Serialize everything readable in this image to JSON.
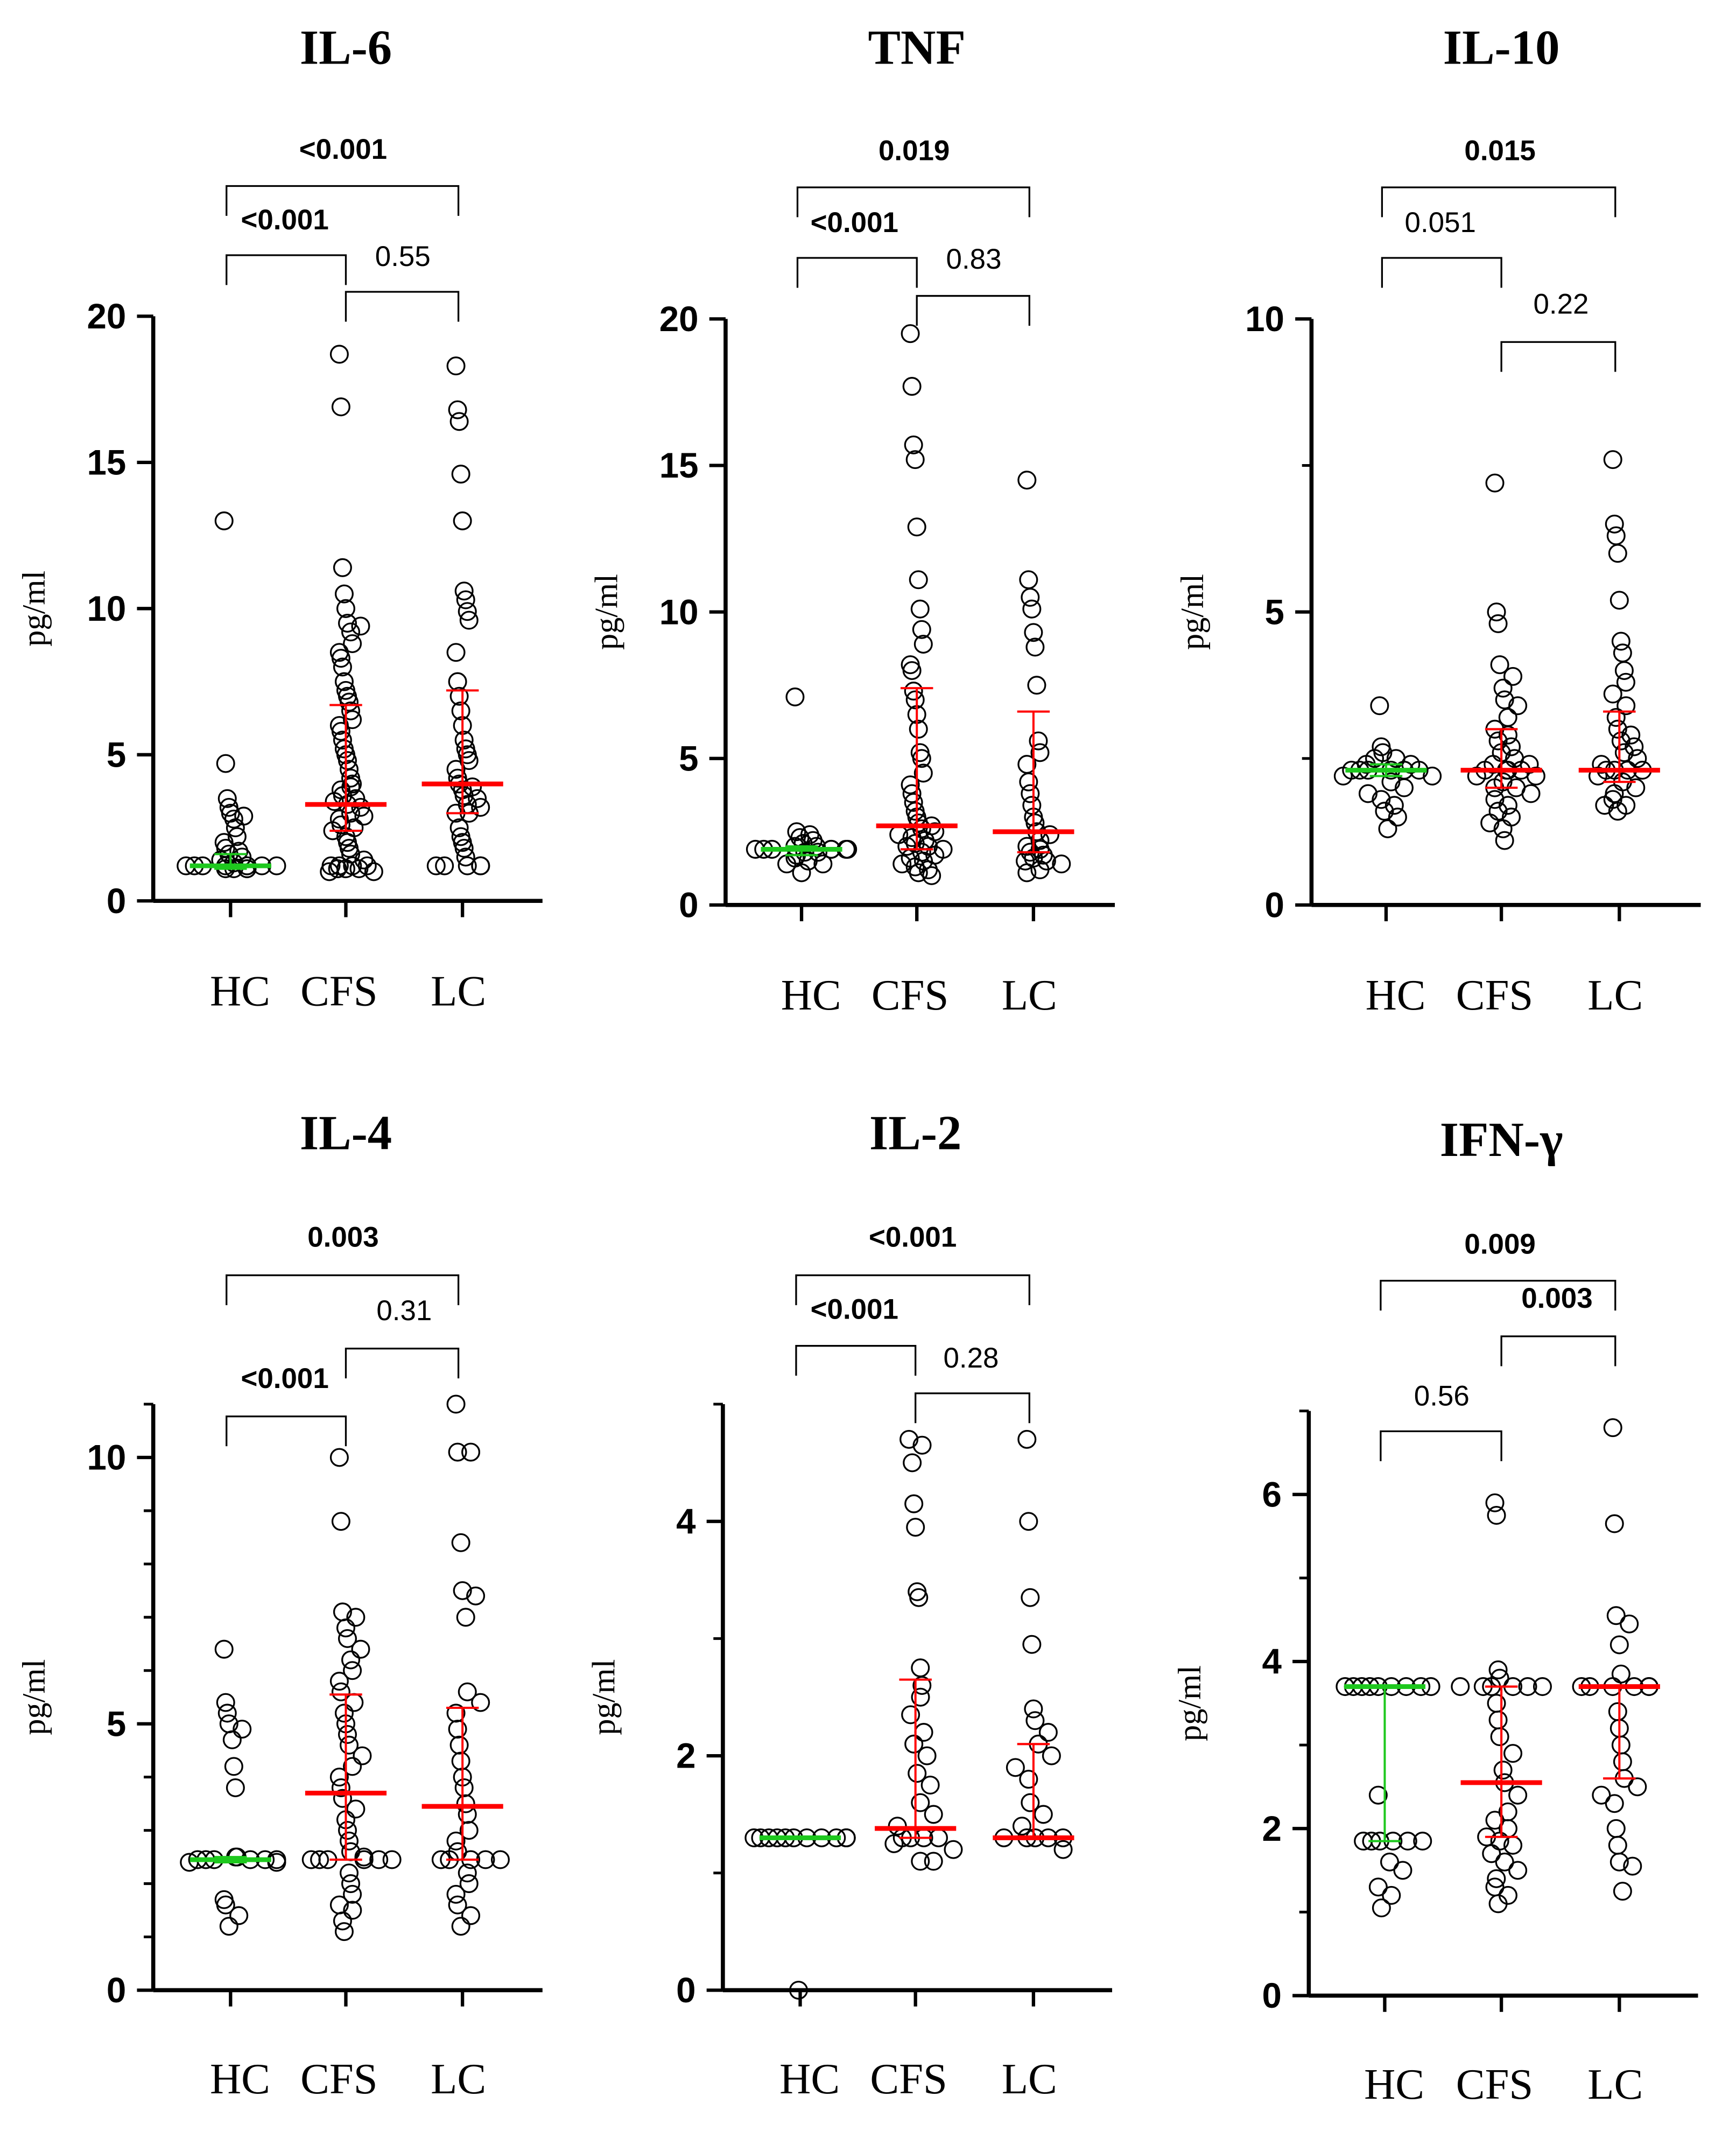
{
  "colors": {
    "hc_median": "#1ec81e",
    "median": "#ff0000",
    "points": "#000000"
  },
  "chart_data": [
    {
      "type": "scatter",
      "title": "IL-6",
      "ylabel": "pg/ml",
      "ylim": [
        0,
        20
      ],
      "yticks": [
        0,
        5,
        10,
        15,
        20
      ],
      "categories": [
        "HC",
        "CFS",
        "LC"
      ],
      "series": [
        {
          "name": "HC",
          "median": 1.2,
          "iqr": [
            1.1,
            1.6
          ],
          "values": [
            13,
            4.7,
            3.5,
            3.2,
            3,
            2.9,
            2.8,
            2.5,
            2.2,
            2,
            1.8,
            1.7,
            1.6,
            1.5,
            1.4,
            1.3,
            1.2,
            1.2,
            1.2,
            1.2,
            1.2,
            1.2,
            1.2,
            1.2,
            1.1,
            1.1,
            1.1,
            1.1
          ]
        },
        {
          "name": "CFS",
          "median": 3.3,
          "iqr": [
            2.4,
            6.7
          ],
          "values": [
            18.7,
            16.9,
            11.4,
            10.5,
            10,
            9.5,
            9.4,
            9.2,
            8.8,
            8.5,
            8.3,
            8,
            7.5,
            7.2,
            7,
            6.8,
            6.5,
            6.2,
            6,
            5.8,
            5.5,
            5.2,
            5,
            4.8,
            4.5,
            4.2,
            4,
            3.9,
            3.8,
            3.6,
            3.5,
            3.4,
            3.3,
            3.2,
            3,
            2.9,
            2.8,
            2.6,
            2.5,
            2.4,
            2.2,
            2,
            1.8,
            1.6,
            1.4,
            1.2,
            1.2,
            1.2,
            1.2,
            1.1,
            1.1,
            1.1,
            1,
            1
          ]
        },
        {
          "name": "LC",
          "median": 4.0,
          "iqr": [
            3.0,
            7.2
          ],
          "values": [
            18.3,
            16.8,
            16.4,
            14.6,
            13,
            10.6,
            10.3,
            9.9,
            9.6,
            8.5,
            7.5,
            7,
            6.5,
            6,
            5.5,
            5.2,
            5,
            4.8,
            4.5,
            4.2,
            4,
            3.9,
            3.8,
            3.6,
            3.5,
            3.3,
            3.2,
            3,
            3,
            2.5,
            2.2,
            2,
            1.8,
            1.5,
            1.2,
            1.2,
            1.2,
            1.2,
            1.2
          ]
        }
      ],
      "comparisons": [
        {
          "groups": [
            "HC",
            "LC"
          ],
          "p": "<0.001",
          "significant": true
        },
        {
          "groups": [
            "HC",
            "CFS"
          ],
          "p": "<0.001",
          "significant": true
        },
        {
          "groups": [
            "CFS",
            "LC"
          ],
          "p": "0.55",
          "significant": false
        }
      ]
    },
    {
      "type": "scatter",
      "title": "TNF",
      "ylabel": "pg/ml",
      "ylim": [
        0,
        20
      ],
      "yticks": [
        0,
        5,
        10,
        15,
        20
      ],
      "categories": [
        "HC",
        "CFS",
        "LC"
      ],
      "series": [
        {
          "name": "HC",
          "median": 1.9,
          "iqr": [
            1.7,
            2.0
          ],
          "values": [
            7.1,
            2.5,
            2.4,
            2.3,
            2.2,
            2.1,
            2,
            2,
            1.9,
            1.9,
            1.9,
            1.9,
            1.9,
            1.9,
            1.9,
            1.8,
            1.8,
            1.7,
            1.6,
            1.5,
            1.4,
            1.4,
            1.1
          ]
        },
        {
          "name": "CFS",
          "median": 2.7,
          "iqr": [
            1.9,
            7.4
          ],
          "values": [
            19.5,
            17.7,
            15.7,
            15.2,
            12.9,
            11.1,
            10.1,
            9.4,
            8.9,
            8.2,
            8,
            7.3,
            7,
            6.5,
            6,
            5.2,
            5,
            4.5,
            4.1,
            3.8,
            3.5,
            3.2,
            3,
            2.8,
            2.7,
            2.6,
            2.5,
            2.4,
            2.3,
            2.2,
            2.1,
            2,
            2,
            1.9,
            1.8,
            1.7,
            1.6,
            1.5,
            1.4,
            1.3,
            1.2,
            1.1,
            1
          ]
        },
        {
          "name": "LC",
          "median": 2.5,
          "iqr": [
            1.8,
            6.6
          ],
          "values": [
            14.5,
            11.1,
            10.5,
            10.1,
            9.3,
            8.8,
            7.5,
            5.6,
            5.2,
            4.8,
            4.2,
            3.8,
            3.4,
            3,
            2.8,
            2.5,
            2.4,
            2.2,
            2,
            1.9,
            1.8,
            1.7,
            1.6,
            1.5,
            1.5,
            1.4,
            1.2,
            1.1
          ]
        }
      ],
      "comparisons": [
        {
          "groups": [
            "HC",
            "LC"
          ],
          "p": "0.019",
          "significant": true
        },
        {
          "groups": [
            "HC",
            "CFS"
          ],
          "p": "<0.001",
          "significant": true
        },
        {
          "groups": [
            "CFS",
            "LC"
          ],
          "p": "0.83",
          "significant": false
        }
      ]
    },
    {
      "type": "scatter",
      "title": "IL-10",
      "ylabel": "pg/ml",
      "ylim": [
        0,
        10
      ],
      "yticks": [
        0,
        5,
        10
      ],
      "minor": [
        2.5,
        7.5
      ],
      "categories": [
        "HC",
        "CFS",
        "LC"
      ],
      "series": [
        {
          "name": "HC",
          "median": 2.3,
          "iqr": [
            2.2,
            2.4
          ],
          "values": [
            3.4,
            2.7,
            2.6,
            2.5,
            2.5,
            2.4,
            2.4,
            2.3,
            2.3,
            2.3,
            2.3,
            2.3,
            2.3,
            2.3,
            2.2,
            2.2,
            2.1,
            2,
            1.9,
            1.8,
            1.7,
            1.6,
            1.5,
            1.3
          ]
        },
        {
          "name": "CFS",
          "median": 2.3,
          "iqr": [
            2.0,
            3.0
          ],
          "values": [
            7.2,
            5,
            4.8,
            4.1,
            3.9,
            3.7,
            3.5,
            3.4,
            3.2,
            3,
            2.9,
            2.8,
            2.7,
            2.6,
            2.5,
            2.4,
            2.4,
            2.3,
            2.3,
            2.3,
            2.3,
            2.2,
            2.2,
            2.1,
            2,
            2,
            1.9,
            1.8,
            1.7,
            1.6,
            1.5,
            1.4,
            1.3,
            1.1
          ]
        },
        {
          "name": "LC",
          "median": 2.3,
          "iqr": [
            2.1,
            3.3
          ],
          "values": [
            7.6,
            6.5,
            6.3,
            6,
            5.2,
            4.5,
            4.3,
            4,
            3.8,
            3.6,
            3.4,
            3.2,
            3,
            2.9,
            2.8,
            2.7,
            2.6,
            2.5,
            2.4,
            2.3,
            2.3,
            2.3,
            2.3,
            2.2,
            2.1,
            2,
            1.9,
            1.8,
            1.7,
            1.7,
            1.6
          ]
        }
      ],
      "comparisons": [
        {
          "groups": [
            "HC",
            "LC"
          ],
          "p": "0.015",
          "significant": true
        },
        {
          "groups": [
            "HC",
            "CFS"
          ],
          "p": "0.051",
          "significant": false
        },
        {
          "groups": [
            "CFS",
            "LC"
          ],
          "p": "0.22",
          "significant": false
        }
      ]
    },
    {
      "type": "scatter",
      "title": "IL-4",
      "ylabel": "pg/ml",
      "ylim": [
        0,
        11
      ],
      "yticks": [
        0,
        5,
        10
      ],
      "minor": [
        1,
        2,
        3,
        4,
        6,
        7,
        8,
        9,
        11
      ],
      "categories": [
        "HC",
        "CFS",
        "LC"
      ],
      "series": [
        {
          "name": "HC",
          "median": 2.45,
          "iqr": [
            2.4,
            2.5
          ],
          "values": [
            6.4,
            5.4,
            5.2,
            5,
            4.9,
            4.7,
            4.2,
            3.8,
            2.5,
            2.5,
            2.45,
            2.45,
            2.45,
            2.45,
            2.45,
            2.45,
            2.4,
            2.4,
            1.7,
            1.6,
            1.4,
            1.2
          ]
        },
        {
          "name": "CFS",
          "median": 3.7,
          "iqr": [
            2.45,
            5.55
          ],
          "values": [
            10,
            8.8,
            7.1,
            7,
            6.8,
            6.6,
            6.4,
            6.2,
            6,
            5.8,
            5.6,
            5.4,
            5.2,
            5,
            4.8,
            4.6,
            4.4,
            4.2,
            4,
            3.8,
            3.6,
            3.4,
            3.2,
            3,
            2.8,
            2.6,
            2.5,
            2.45,
            2.45,
            2.45,
            2.45,
            2.45,
            2.45,
            2.2,
            2,
            1.8,
            1.6,
            1.5,
            1.3,
            1.1
          ]
        },
        {
          "name": "LC",
          "median": 3.45,
          "iqr": [
            2.45,
            5.3
          ],
          "values": [
            11,
            10.1,
            10.1,
            8.4,
            7.5,
            7.4,
            7,
            5.6,
            5.4,
            5.2,
            4.9,
            4.6,
            4.3,
            4,
            3.8,
            3.5,
            3.3,
            3,
            2.8,
            2.6,
            2.45,
            2.45,
            2.45,
            2.45,
            2.45,
            2.2,
            2,
            1.8,
            1.6,
            1.4,
            1.2
          ]
        }
      ],
      "comparisons": [
        {
          "groups": [
            "HC",
            "LC"
          ],
          "p": "0.003",
          "significant": true
        },
        {
          "groups": [
            "CFS",
            "LC"
          ],
          "p": "0.31",
          "significant": false
        },
        {
          "groups": [
            "HC",
            "CFS"
          ],
          "p": "<0.001",
          "significant": true
        }
      ]
    },
    {
      "type": "scatter",
      "title": "IL-2",
      "ylabel": "pg/ml",
      "ylim": [
        0,
        5
      ],
      "yticks": [
        0,
        2,
        4
      ],
      "minor": [
        1,
        3,
        5
      ],
      "categories": [
        "HC",
        "CFS",
        "LC"
      ],
      "series": [
        {
          "name": "HC",
          "median": 1.3,
          "iqr": [
            1.3,
            1.3
          ],
          "values": [
            1.3,
            1.3,
            1.3,
            1.3,
            1.3,
            1.3,
            1.3,
            1.3,
            1.3,
            1.3,
            1.3,
            1.3,
            0
          ]
        },
        {
          "name": "CFS",
          "median": 1.38,
          "iqr": [
            1.3,
            2.65
          ],
          "values": [
            4.7,
            4.65,
            4.5,
            4.15,
            3.95,
            3.4,
            3.35,
            2.75,
            2.6,
            2.5,
            2.35,
            2.2,
            2.1,
            2,
            1.85,
            1.75,
            1.6,
            1.5,
            1.4,
            1.3,
            1.3,
            1.3,
            1.3,
            1.25,
            1.2,
            1.1,
            1.1
          ]
        },
        {
          "name": "LC",
          "median": 1.3,
          "iqr": [
            1.3,
            2.1
          ],
          "values": [
            4.7,
            4,
            3.35,
            2.95,
            2.4,
            2.3,
            2.2,
            2.1,
            2,
            1.9,
            1.8,
            1.6,
            1.5,
            1.4,
            1.3,
            1.3,
            1.3,
            1.3,
            1.3,
            1.2
          ]
        }
      ],
      "comparisons": [
        {
          "groups": [
            "HC",
            "LC"
          ],
          "p": "<0.001",
          "significant": true
        },
        {
          "groups": [
            "HC",
            "CFS"
          ],
          "p": "<0.001",
          "significant": true
        },
        {
          "groups": [
            "CFS",
            "LC"
          ],
          "p": "0.28",
          "significant": false
        }
      ]
    },
    {
      "type": "scatter",
      "title": "IFN-γ",
      "ylabel": "pg/ml",
      "ylim": [
        0,
        7
      ],
      "yticks": [
        0,
        2,
        4,
        6
      ],
      "minor": [
        1,
        3,
        5,
        7
      ],
      "categories": [
        "HC",
        "CFS",
        "LC"
      ],
      "series": [
        {
          "name": "HC",
          "median": 3.7,
          "iqr": [
            1.85,
            3.7
          ],
          "values": [
            3.7,
            3.7,
            3.7,
            3.7,
            3.7,
            3.7,
            3.7,
            3.7,
            3.7,
            2.4,
            1.85,
            1.85,
            1.85,
            1.85,
            1.85,
            1.85,
            1.6,
            1.5,
            1.3,
            1.2,
            1.05
          ]
        },
        {
          "name": "CFS",
          "median": 2.55,
          "iqr": [
            1.9,
            3.7
          ],
          "values": [
            5.9,
            5.75,
            3.9,
            3.8,
            3.7,
            3.7,
            3.7,
            3.7,
            3.7,
            3.7,
            3.5,
            3.3,
            3.1,
            2.9,
            2.7,
            2.55,
            2.4,
            2.2,
            2.1,
            2,
            1.9,
            1.85,
            1.8,
            1.7,
            1.6,
            1.5,
            1.4,
            1.3,
            1.2,
            1.1
          ]
        },
        {
          "name": "LC",
          "median": 3.7,
          "iqr": [
            2.6,
            3.7
          ],
          "values": [
            6.8,
            5.65,
            4.55,
            4.45,
            4.2,
            3.85,
            3.7,
            3.7,
            3.7,
            3.7,
            3.7,
            3.7,
            3.4,
            3.2,
            3,
            2.8,
            2.6,
            2.5,
            2.4,
            2.3,
            2,
            1.8,
            1.6,
            1.55,
            1.25
          ]
        }
      ],
      "comparisons": [
        {
          "groups": [
            "HC",
            "LC"
          ],
          "p": "0.009",
          "significant": true
        },
        {
          "groups": [
            "CFS",
            "LC"
          ],
          "p": "0.003",
          "significant": true
        },
        {
          "groups": [
            "HC",
            "CFS"
          ],
          "p": "0.56",
          "significant": false
        }
      ]
    }
  ]
}
